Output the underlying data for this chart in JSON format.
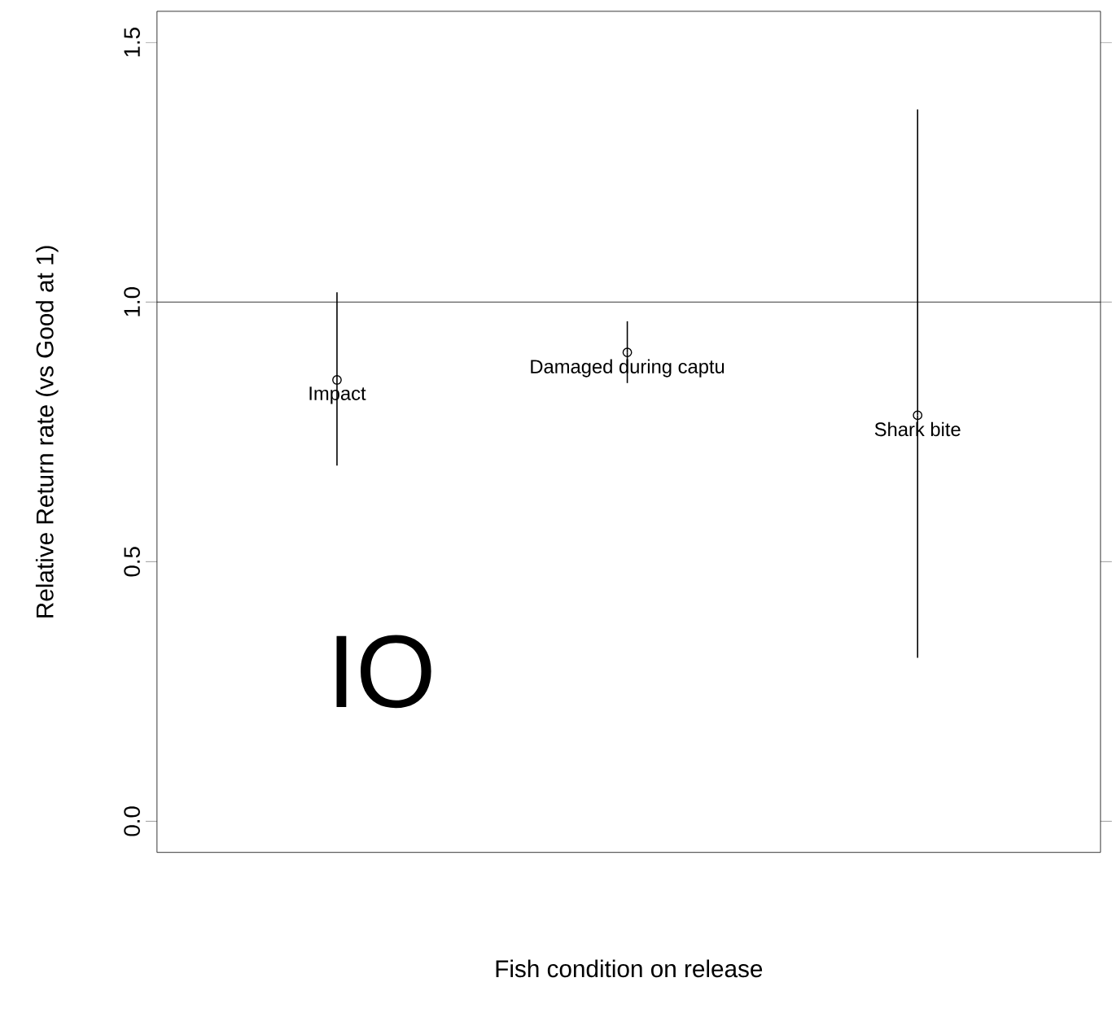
{
  "chart_data": {
    "type": "scatter",
    "title": "IO",
    "xlabel": "Fish condition on release",
    "ylabel": "Relative Return rate (vs Good at 1)",
    "categories": [
      null,
      null,
      null
    ],
    "series": [
      {
        "name": "Impact",
        "color": "#000000",
        "values": [
          0.85,
          null,
          null
        ],
        "errors": [
          [
            0.685,
            1.019
          ],
          null,
          null
        ]
      },
      {
        "name": "Damaged during captu",
        "color": "#000000",
        "values": [
          null,
          0.903,
          null
        ],
        "errors": [
          null,
          [
            0.844,
            0.963
          ],
          null
        ]
      },
      {
        "name": "Shark bite",
        "color": "#000000",
        "values": [
          null,
          null,
          0.782
        ],
        "errors": [
          null,
          null,
          [
            0.315,
            1.371
          ]
        ]
      }
    ],
    "ylim": [
      -0.06,
      1.56
    ],
    "yticks": [
      {
        "value": 0,
        "label": "0.0"
      },
      {
        "value": 0.5,
        "label": "0.5"
      },
      {
        "value": 1,
        "label": "1.0"
      },
      {
        "value": 1.5,
        "label": "1.5"
      }
    ],
    "ref_lines": [
      {
        "axis": "y",
        "value": 1,
        "color": "#000000"
      }
    ],
    "marker": "circle",
    "grid": false,
    "legend": false,
    "tick_labels": "y"
  }
}
